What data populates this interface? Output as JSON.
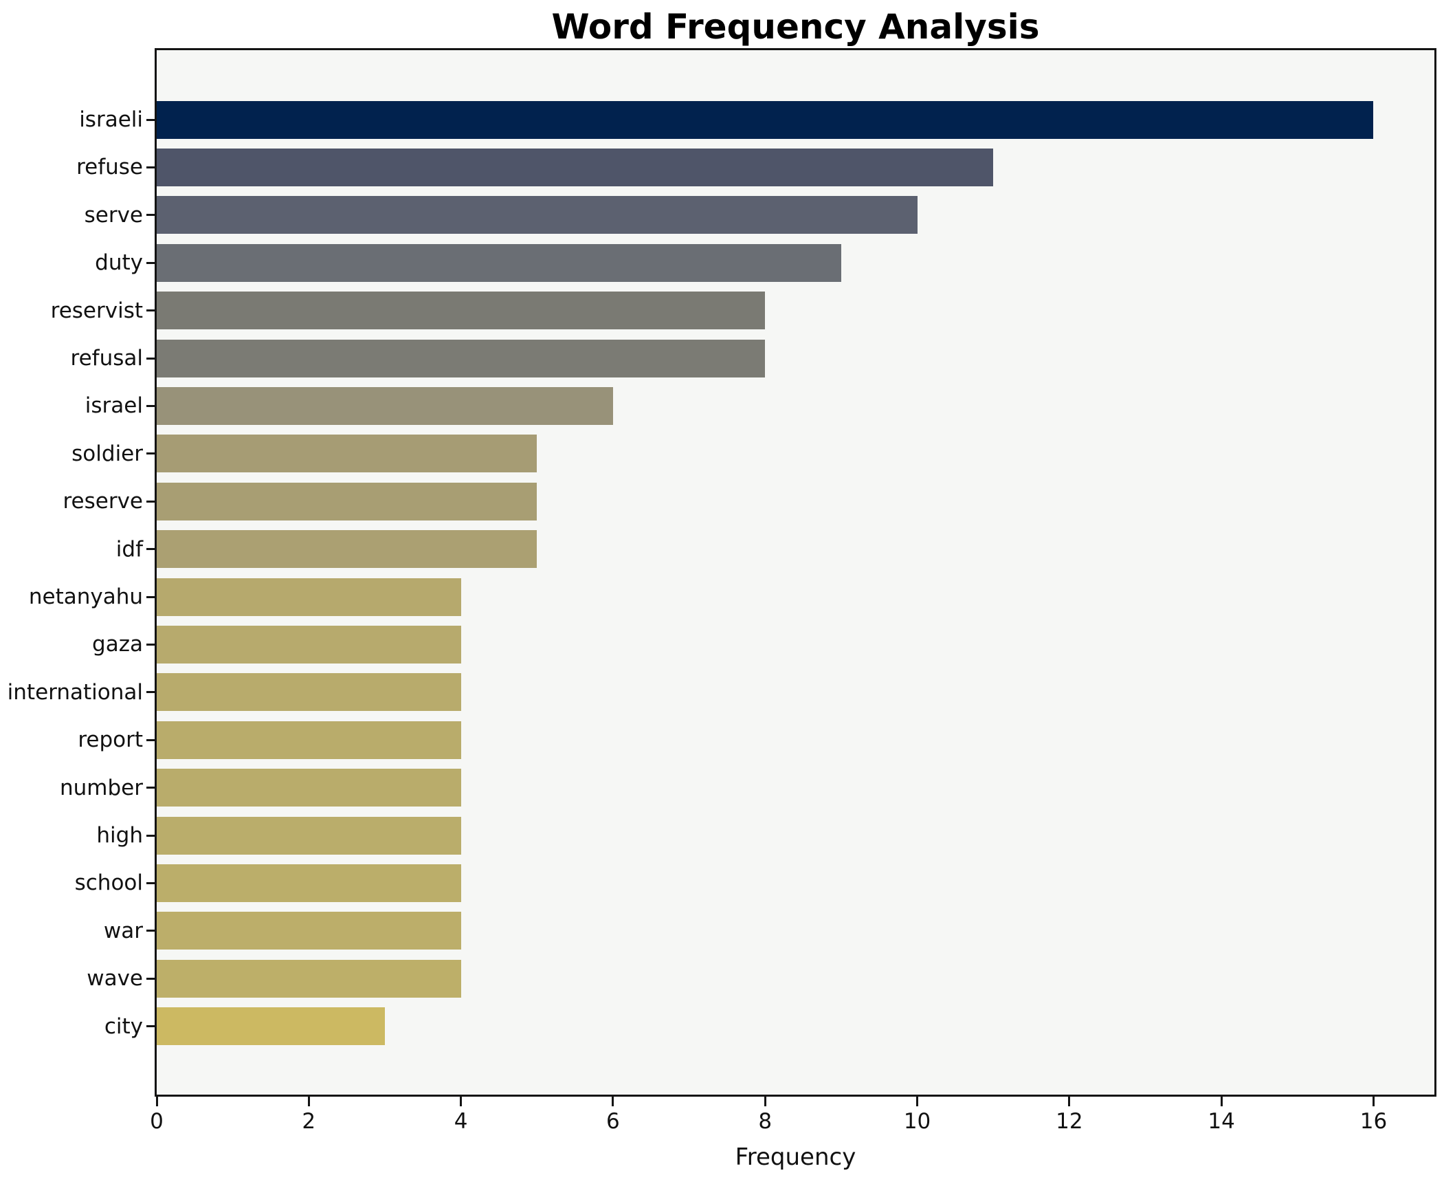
{
  "title": "Word Frequency Analysis",
  "chart_data": {
    "type": "bar",
    "orientation": "horizontal",
    "title": "Word Frequency Analysis",
    "xlabel": "Frequency",
    "ylabel": "",
    "xlim": [
      0,
      16.8
    ],
    "xticks": [
      0,
      2,
      4,
      6,
      8,
      10,
      12,
      14,
      16
    ],
    "grid": false,
    "legend_position": "none",
    "plot_bg_color": "#f6f7f5",
    "figure_bg_color": "#ffffff",
    "spine_color": "#141414",
    "categories": [
      "israeli",
      "refuse",
      "serve",
      "duty",
      "reservist",
      "refusal",
      "israel",
      "soldier",
      "reserve",
      "idf",
      "netanyahu",
      "gaza",
      "international",
      "report",
      "number",
      "high",
      "school",
      "war",
      "wave",
      "city"
    ],
    "values": [
      16,
      11,
      10,
      9,
      8,
      8,
      6,
      5,
      5,
      5,
      4,
      4,
      4,
      4,
      4,
      4,
      4,
      4,
      4,
      3
    ],
    "bar_colors": [
      "#01224e",
      "#4f5569",
      "#5c6170",
      "#6a6e74",
      "#7a7a73",
      "#7b7b74",
      "#989279",
      "#a69c74",
      "#a89e73",
      "#aba072",
      "#b6a96d",
      "#b7aa6d",
      "#b8ab6c",
      "#b9ac6b",
      "#b9ac6b",
      "#baad6b",
      "#bbae6a",
      "#bcae6a",
      "#bdaf69",
      "#ccb962"
    ]
  }
}
